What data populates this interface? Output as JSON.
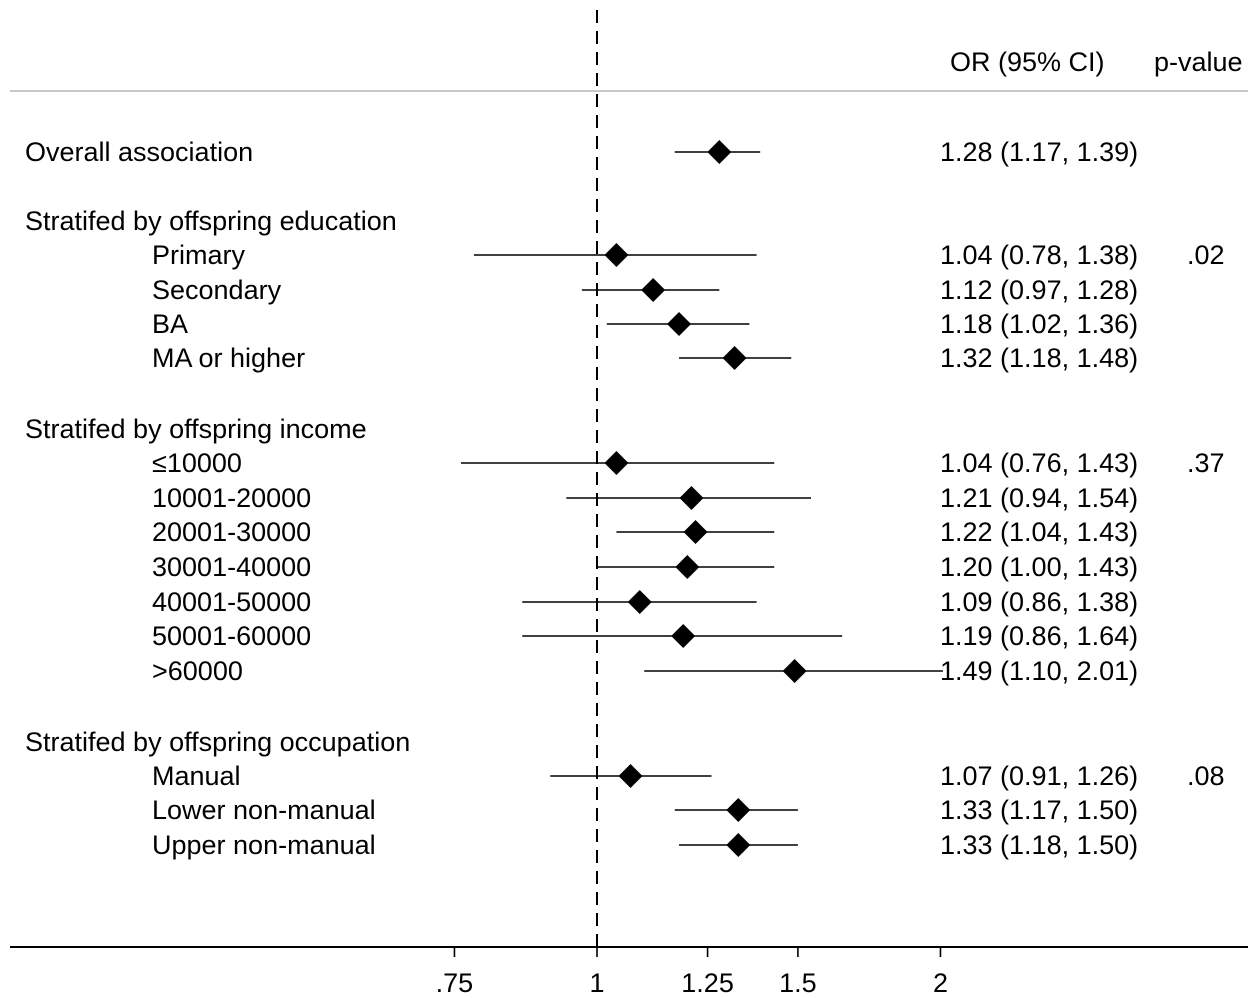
{
  "chart_data": {
    "type": "forest",
    "xscale": "log",
    "reference_line": 1,
    "xticks": [
      {
        "value": 0.75,
        "label": ".75"
      },
      {
        "value": 1,
        "label": "1"
      },
      {
        "value": 1.25,
        "label": "1.25"
      },
      {
        "value": 1.5,
        "label": "1.5"
      },
      {
        "value": 2,
        "label": "2"
      }
    ],
    "column_headers": {
      "estimate": "OR (95% CI)",
      "pvalue": "p-value"
    },
    "rows": [
      {
        "kind": "estimate",
        "label": "Overall association",
        "indent": false,
        "or": 1.28,
        "lo": 1.17,
        "hi": 1.39,
        "text": "1.28 (1.17, 1.39)",
        "p": ""
      },
      {
        "kind": "header",
        "label": "Stratifed by offspring education"
      },
      {
        "kind": "estimate",
        "label": "Primary",
        "indent": true,
        "or": 1.04,
        "lo": 0.78,
        "hi": 1.38,
        "text": "1.04 (0.78, 1.38)",
        "p": ".02"
      },
      {
        "kind": "estimate",
        "label": "Secondary",
        "indent": true,
        "or": 1.12,
        "lo": 0.97,
        "hi": 1.28,
        "text": "1.12 (0.97, 1.28)",
        "p": ""
      },
      {
        "kind": "estimate",
        "label": "BA",
        "indent": true,
        "or": 1.18,
        "lo": 1.02,
        "hi": 1.36,
        "text": "1.18 (1.02, 1.36)",
        "p": ""
      },
      {
        "kind": "estimate",
        "label": "MA or higher",
        "indent": true,
        "or": 1.32,
        "lo": 1.18,
        "hi": 1.48,
        "text": "1.32 (1.18, 1.48)",
        "p": ""
      },
      {
        "kind": "header",
        "label": "Stratifed by offspring income"
      },
      {
        "kind": "estimate",
        "label": "≤10000",
        "indent": true,
        "or": 1.04,
        "lo": 0.76,
        "hi": 1.43,
        "text": "1.04 (0.76, 1.43)",
        "p": ".37"
      },
      {
        "kind": "estimate",
        "label": "10001-20000",
        "indent": true,
        "or": 1.21,
        "lo": 0.94,
        "hi": 1.54,
        "text": "1.21 (0.94, 1.54)",
        "p": ""
      },
      {
        "kind": "estimate",
        "label": "20001-30000",
        "indent": true,
        "or": 1.22,
        "lo": 1.04,
        "hi": 1.43,
        "text": "1.22 (1.04, 1.43)",
        "p": ""
      },
      {
        "kind": "estimate",
        "label": "30001-40000",
        "indent": true,
        "or": 1.2,
        "lo": 1.0,
        "hi": 1.43,
        "text": "1.20 (1.00, 1.43)",
        "p": ""
      },
      {
        "kind": "estimate",
        "label": "40001-50000",
        "indent": true,
        "or": 1.09,
        "lo": 0.86,
        "hi": 1.38,
        "text": "1.09 (0.86, 1.38)",
        "p": ""
      },
      {
        "kind": "estimate",
        "label": "50001-60000",
        "indent": true,
        "or": 1.19,
        "lo": 0.86,
        "hi": 1.64,
        "text": "1.19 (0.86, 1.64)",
        "p": ""
      },
      {
        "kind": "estimate",
        "label": ">60000",
        "indent": true,
        "or": 1.49,
        "lo": 1.1,
        "hi": 2.01,
        "text": "1.49 (1.10, 2.01)",
        "p": ""
      },
      {
        "kind": "header",
        "label": "Stratifed by offspring occupation"
      },
      {
        "kind": "estimate",
        "label": "Manual",
        "indent": true,
        "or": 1.07,
        "lo": 0.91,
        "hi": 1.26,
        "text": "1.07 (0.91, 1.26)",
        "p": ".08"
      },
      {
        "kind": "estimate",
        "label": "Lower non-manual",
        "indent": true,
        "or": 1.33,
        "lo": 1.17,
        "hi": 1.5,
        "text": "1.33 (1.17, 1.50)",
        "p": ""
      },
      {
        "kind": "estimate",
        "label": "Upper non-manual",
        "indent": true,
        "or": 1.33,
        "lo": 1.18,
        "hi": 1.5,
        "text": "1.33 (1.18, 1.50)",
        "p": ""
      }
    ]
  }
}
